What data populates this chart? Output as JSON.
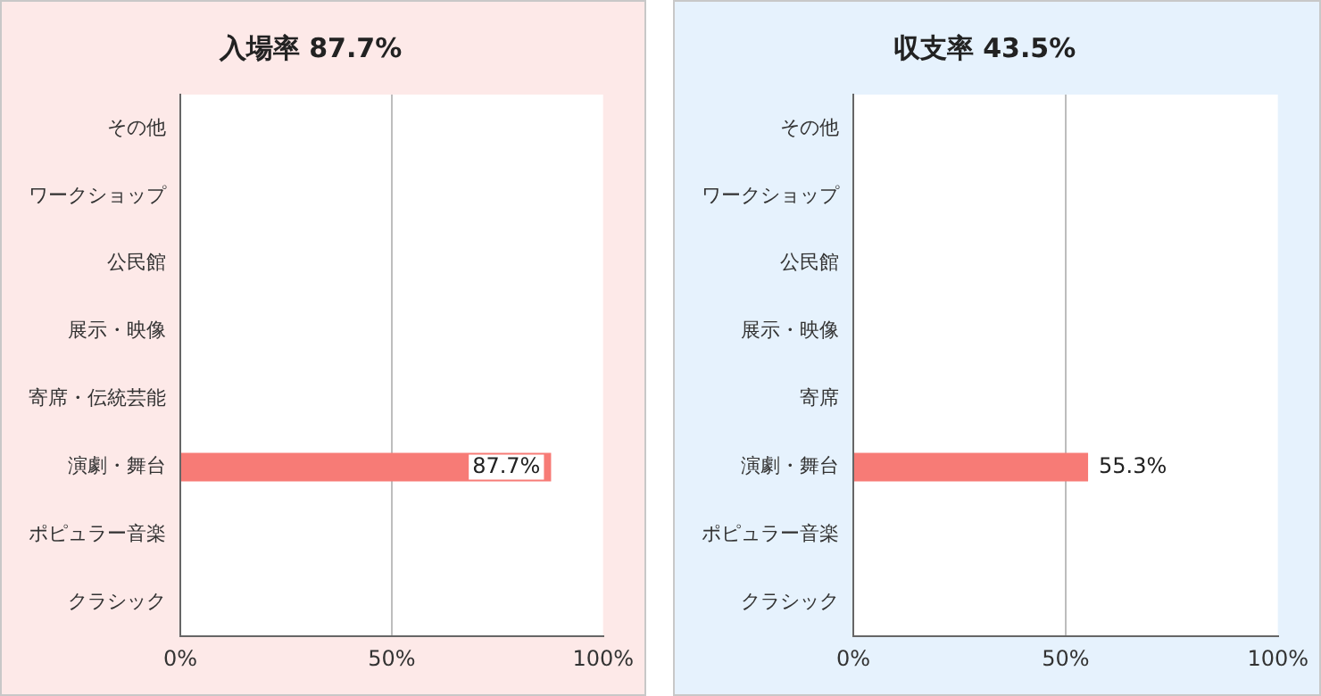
{
  "chart_data": [
    {
      "type": "bar",
      "title": "入場率 87.7%",
      "orientation": "horizontal",
      "categories": [
        "その他",
        "ワークショップ",
        "公民館",
        "展示・映像",
        "寄席・伝統芸能",
        "演劇・舞台",
        "ポピュラー音楽",
        "クラシック"
      ],
      "values": [
        null,
        null,
        null,
        null,
        null,
        87.7,
        null,
        null
      ],
      "color": "#f77b76",
      "xlim": [
        0,
        100
      ],
      "xticks": [
        {
          "value": 0,
          "label": "0%"
        },
        {
          "value": 50,
          "label": "50%"
        },
        {
          "value": 100,
          "label": "100%"
        }
      ],
      "value_labels": [
        null,
        null,
        null,
        null,
        null,
        "87.7%",
        null,
        null
      ],
      "grid": "x"
    },
    {
      "type": "bar",
      "title": "収支率 43.5%",
      "orientation": "horizontal",
      "categories": [
        "その他",
        "ワークショップ",
        "公民館",
        "展示・映像",
        "寄席",
        "演劇・舞台",
        "ポピュラー音楽",
        "クラシック"
      ],
      "values": [
        null,
        null,
        null,
        null,
        null,
        55.3,
        null,
        null
      ],
      "color": "#f77b76",
      "xlim": [
        0,
        100
      ],
      "xticks": [
        {
          "value": 0,
          "label": "0%"
        },
        {
          "value": 50,
          "label": "50%"
        },
        {
          "value": 100,
          "label": "100%"
        }
      ],
      "value_labels": [
        null,
        null,
        null,
        null,
        null,
        "55.3%",
        null,
        null
      ],
      "grid": "x"
    }
  ]
}
